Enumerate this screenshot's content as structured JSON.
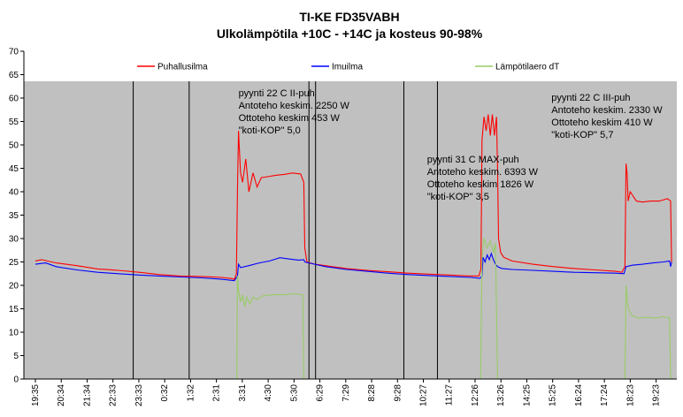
{
  "chart_data": {
    "type": "line",
    "title": "TI-KE FD35VABH",
    "subtitle": "Ulkolämpötila  +10C - +14C ja kosteus 90-98%",
    "xlabel": "",
    "ylabel": "",
    "ylim": [
      0,
      70
    ],
    "yticks": [
      0,
      5,
      10,
      15,
      20,
      25,
      30,
      35,
      40,
      45,
      50,
      55,
      60,
      65,
      70
    ],
    "grid": false,
    "legend_position": "top",
    "x_tick_labels": [
      "19:35",
      "20:34",
      "21:34",
      "22:33",
      "23:33",
      "0:32",
      "1:32",
      "2:31",
      "3:31",
      "4:30",
      "5:30",
      "6:29",
      "7:29",
      "8:28",
      "9:28",
      "10:27",
      "11:27",
      "12:26",
      "13:26",
      "14:25",
      "15:25",
      "16:24",
      "17:24",
      "18:23",
      "19:23"
    ],
    "colors": {
      "plot_background": "#c0c0c0",
      "upper_band": "#ffffff",
      "event_line": "#000000"
    },
    "event_lines_x": [
      4.72,
      7.42,
      13.2,
      13.52,
      17.78,
      19.4
    ],
    "series": [
      {
        "name": "Puhallusilma",
        "color": "#ff0000",
        "points": [
          [
            0,
            25.2
          ],
          [
            0.3,
            25.5
          ],
          [
            1,
            24.8
          ],
          [
            2,
            24.2
          ],
          [
            3,
            23.5
          ],
          [
            4,
            23.2
          ],
          [
            5,
            22.8
          ],
          [
            6,
            22.3
          ],
          [
            7,
            22.0
          ],
          [
            8,
            21.9
          ],
          [
            9,
            21.7
          ],
          [
            9.4,
            21.5
          ],
          [
            9.6,
            21.3
          ],
          [
            9.7,
            22.5
          ],
          [
            9.75,
            40
          ],
          [
            9.8,
            53
          ],
          [
            9.9,
            44
          ],
          [
            10.0,
            42
          ],
          [
            10.15,
            47
          ],
          [
            10.3,
            40
          ],
          [
            10.5,
            44
          ],
          [
            10.7,
            41
          ],
          [
            10.9,
            43
          ],
          [
            11.2,
            43.2
          ],
          [
            11.6,
            43.5
          ],
          [
            12.0,
            43.7
          ],
          [
            12.4,
            44
          ],
          [
            12.8,
            43.8
          ],
          [
            12.95,
            42
          ],
          [
            13.0,
            28
          ],
          [
            13.1,
            25
          ],
          [
            13.5,
            24.5
          ],
          [
            14,
            24.2
          ],
          [
            15,
            23.6
          ],
          [
            16,
            23.2
          ],
          [
            17,
            22.9
          ],
          [
            18,
            22.6
          ],
          [
            19,
            22.4
          ],
          [
            20,
            22.2
          ],
          [
            21,
            22.0
          ],
          [
            21.4,
            22.0
          ],
          [
            21.5,
            23.5
          ],
          [
            21.55,
            51
          ],
          [
            21.65,
            56
          ],
          [
            21.75,
            53
          ],
          [
            21.85,
            56.5
          ],
          [
            21.95,
            52
          ],
          [
            22.05,
            56.5
          ],
          [
            22.15,
            52
          ],
          [
            22.25,
            56
          ],
          [
            22.3,
            45
          ],
          [
            22.35,
            30
          ],
          [
            22.45,
            27
          ],
          [
            22.6,
            26
          ],
          [
            23,
            25.2
          ],
          [
            24,
            24.5
          ],
          [
            25,
            24.0
          ],
          [
            26,
            23.6
          ],
          [
            27,
            23.3
          ],
          [
            28,
            23.0
          ],
          [
            28.3,
            22.8
          ],
          [
            28.45,
            24
          ],
          [
            28.5,
            46
          ],
          [
            28.55,
            44
          ],
          [
            28.6,
            38
          ],
          [
            28.7,
            40
          ],
          [
            28.85,
            39
          ],
          [
            29,
            38
          ],
          [
            29.3,
            37.8
          ],
          [
            29.7,
            38
          ],
          [
            30.1,
            38
          ],
          [
            30.5,
            38.5
          ],
          [
            30.65,
            38
          ],
          [
            30.7,
            25
          ]
        ]
      },
      {
        "name": "Imuilma",
        "color": "#0000ff",
        "points": [
          [
            0,
            24.5
          ],
          [
            0.5,
            24.8
          ],
          [
            1,
            24
          ],
          [
            2,
            23.3
          ],
          [
            3,
            22.8
          ],
          [
            4,
            22.5
          ],
          [
            5,
            22.2
          ],
          [
            6,
            22.0
          ],
          [
            7,
            21.8
          ],
          [
            8,
            21.6
          ],
          [
            9,
            21.3
          ],
          [
            9.6,
            21.0
          ],
          [
            9.75,
            22
          ],
          [
            9.8,
            24.5
          ],
          [
            9.9,
            23.8
          ],
          [
            10.3,
            24.2
          ],
          [
            10.8,
            24.8
          ],
          [
            11.3,
            25.2
          ],
          [
            11.8,
            25.9
          ],
          [
            12.3,
            25.6
          ],
          [
            12.7,
            25.4
          ],
          [
            12.95,
            25.5
          ],
          [
            13.0,
            25
          ],
          [
            13.2,
            24.8
          ],
          [
            14,
            24.0
          ],
          [
            15,
            23.4
          ],
          [
            16,
            23.0
          ],
          [
            17,
            22.6
          ],
          [
            18,
            22.3
          ],
          [
            19,
            22.1
          ],
          [
            20,
            21.9
          ],
          [
            21,
            21.7
          ],
          [
            21.45,
            21.5
          ],
          [
            21.55,
            22
          ],
          [
            21.6,
            26
          ],
          [
            21.7,
            25
          ],
          [
            21.8,
            26.5
          ],
          [
            21.9,
            25.5
          ],
          [
            22.0,
            26.8
          ],
          [
            22.1,
            25.5
          ],
          [
            22.2,
            24.5
          ],
          [
            22.3,
            24
          ],
          [
            22.5,
            23.6
          ],
          [
            23,
            23.4
          ],
          [
            24,
            23.2
          ],
          [
            25,
            23.0
          ],
          [
            26,
            22.8
          ],
          [
            27,
            22.7
          ],
          [
            28,
            22.6
          ],
          [
            28.4,
            22.5
          ],
          [
            28.5,
            24
          ],
          [
            28.8,
            24.3
          ],
          [
            29.3,
            24.5
          ],
          [
            29.8,
            24.8
          ],
          [
            30.3,
            25.0
          ],
          [
            30.6,
            25.2
          ],
          [
            30.65,
            24
          ],
          [
            30.7,
            25
          ]
        ]
      },
      {
        "name": "Lämpötilaero dT",
        "color": "#99cc66",
        "points": [
          [
            9.72,
            0
          ],
          [
            9.75,
            22
          ],
          [
            9.8,
            19
          ],
          [
            9.9,
            16.5
          ],
          [
            10.0,
            18
          ],
          [
            10.1,
            15.5
          ],
          [
            10.2,
            17.5
          ],
          [
            10.35,
            16
          ],
          [
            10.5,
            17.5
          ],
          [
            10.7,
            17
          ],
          [
            11,
            17.8
          ],
          [
            11.5,
            18
          ],
          [
            12,
            18
          ],
          [
            12.5,
            18.2
          ],
          [
            12.9,
            18
          ],
          [
            12.95,
            0
          ],
          [
            21.48,
            0
          ],
          [
            21.55,
            26
          ],
          [
            21.65,
            30
          ],
          [
            21.8,
            28
          ],
          [
            21.95,
            29.5
          ],
          [
            22.1,
            27
          ],
          [
            22.2,
            29
          ],
          [
            22.3,
            0
          ],
          [
            28.45,
            0
          ],
          [
            28.5,
            20
          ],
          [
            28.6,
            15
          ],
          [
            28.8,
            13.5
          ],
          [
            29.1,
            13
          ],
          [
            29.5,
            13.2
          ],
          [
            29.9,
            13
          ],
          [
            30.3,
            13.3
          ],
          [
            30.6,
            13
          ],
          [
            30.65,
            0
          ]
        ]
      }
    ],
    "annotations": [
      {
        "x": 9.8,
        "y": 60.4,
        "lines": [
          "pyynti 22 C II-puh",
          "Antoteho keskim. 2250 W",
          "Ottoteho keskim 453 W",
          "\"koti-KOP\" 5,0"
        ]
      },
      {
        "x": 18.9,
        "y": 46.2,
        "lines": [
          "pyynti 31 C MAX-puh",
          "Antoteho keskim. 6393 W",
          "Ottoteho keskim 1826 W",
          "\"koti-KOP\" 3,5"
        ]
      },
      {
        "x": 24.9,
        "y": 59.4,
        "lines": [
          "pyynti 22 C III-puh",
          "Antoteho keskim. 2330 W",
          "Ottoteho keskim 410 W",
          "\"koti-KOP\" 5,7"
        ]
      }
    ]
  }
}
